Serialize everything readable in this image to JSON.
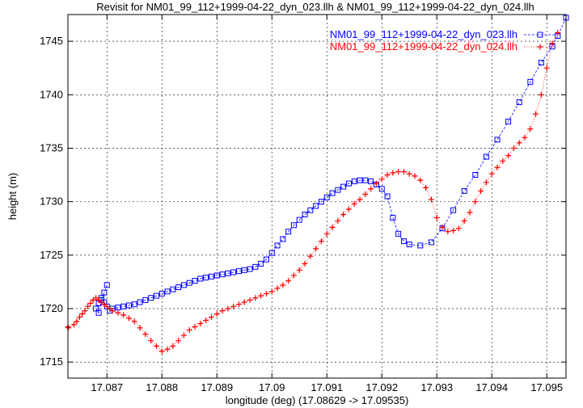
{
  "chart_data": {
    "type": "scatter",
    "title": "Revisit for NM01_99_112+1999-04-22_dyn_023.llh & NM01_99_112+1999-04-22_dyn_024.llh",
    "xlabel": "longitude (deg) (17.08629 -> 17.09535)",
    "ylabel": "height (m)",
    "xlim": [
      17.08629,
      17.09535
    ],
    "ylim": [
      1713.5,
      1747.5
    ],
    "xticks": [
      "17.087",
      "17.088",
      "17.089",
      "17.09",
      "17.091",
      "17.092",
      "17.093",
      "17.094",
      "17.095"
    ],
    "yticks": [
      "1715",
      "1720",
      "1725",
      "1730",
      "1735",
      "1740",
      "1745"
    ],
    "grid": true,
    "legend_position": "top-right",
    "series": [
      {
        "name": "NM01_99_112+1999-04-22_dyn_023.llh",
        "color": "#0000ff",
        "marker": "square",
        "line": "dashed",
        "x": [
          17.09535,
          17.0952,
          17.0951,
          17.0949,
          17.0947,
          17.0945,
          17.0943,
          17.0941,
          17.0939,
          17.0937,
          17.0935,
          17.0933,
          17.0931,
          17.0929,
          17.0927,
          17.0925,
          17.0924,
          17.0923,
          17.0922,
          17.0921,
          17.092,
          17.0919,
          17.0918,
          17.0917,
          17.0916,
          17.0915,
          17.0914,
          17.0913,
          17.0912,
          17.0911,
          17.091,
          17.0909,
          17.0908,
          17.0907,
          17.0906,
          17.0905,
          17.0904,
          17.0903,
          17.0902,
          17.0901,
          17.09,
          17.0899,
          17.0898,
          17.0897,
          17.0896,
          17.0895,
          17.0894,
          17.0893,
          17.0892,
          17.0891,
          17.089,
          17.0889,
          17.0888,
          17.0887,
          17.0886,
          17.0885,
          17.0884,
          17.0883,
          17.0882,
          17.0881,
          17.088,
          17.0879,
          17.0878,
          17.0877,
          17.0876,
          17.0875,
          17.0874,
          17.0873,
          17.0872,
          17.0871,
          17.08705,
          17.087,
          17.08695,
          17.0869,
          17.08685,
          17.0868,
          17.08685,
          17.0869,
          17.08695,
          17.087
        ],
        "y": [
          1747.2,
          1745.5,
          1744.5,
          1743.0,
          1741.2,
          1739.3,
          1737.5,
          1735.8,
          1734.2,
          1732.5,
          1731.0,
          1729.2,
          1727.5,
          1726.2,
          1725.9,
          1726.0,
          1726.3,
          1727.0,
          1728.5,
          1730.5,
          1731.2,
          1731.6,
          1731.9,
          1732.0,
          1732.0,
          1731.9,
          1731.7,
          1731.4,
          1731.1,
          1730.8,
          1730.4,
          1730.0,
          1729.6,
          1729.2,
          1728.8,
          1728.3,
          1727.8,
          1727.2,
          1726.5,
          1725.9,
          1725.2,
          1724.6,
          1724.2,
          1723.9,
          1723.7,
          1723.6,
          1723.5,
          1723.4,
          1723.3,
          1723.2,
          1723.1,
          1723.0,
          1722.9,
          1722.8,
          1722.6,
          1722.4,
          1722.2,
          1722.0,
          1721.8,
          1721.6,
          1721.4,
          1721.2,
          1721.0,
          1720.8,
          1720.6,
          1720.4,
          1720.3,
          1720.2,
          1720.1,
          1720.0,
          1719.8,
          1720.2,
          1720.6,
          1721.0,
          1720.5,
          1720.0,
          1719.6,
          1720.8,
          1721.5,
          1722.2
        ]
      },
      {
        "name": "NM01_99_112+1999-04-22_dyn_024.llh",
        "color": "#ff0000",
        "marker": "plus",
        "line": "dotted",
        "x": [
          17.0952,
          17.0951,
          17.095,
          17.0949,
          17.0948,
          17.0947,
          17.0946,
          17.0945,
          17.0944,
          17.0943,
          17.0942,
          17.0941,
          17.094,
          17.0939,
          17.0938,
          17.0937,
          17.0936,
          17.0935,
          17.0934,
          17.0933,
          17.0932,
          17.0931,
          17.093,
          17.0929,
          17.0928,
          17.0927,
          17.0926,
          17.0925,
          17.0924,
          17.0923,
          17.0922,
          17.0921,
          17.092,
          17.0919,
          17.0918,
          17.0917,
          17.0916,
          17.0915,
          17.0914,
          17.0913,
          17.0912,
          17.0911,
          17.091,
          17.0909,
          17.0908,
          17.0907,
          17.0906,
          17.0905,
          17.0904,
          17.0903,
          17.0902,
          17.0901,
          17.09,
          17.0899,
          17.0898,
          17.0897,
          17.0896,
          17.0895,
          17.0894,
          17.0893,
          17.0892,
          17.0891,
          17.089,
          17.0889,
          17.0888,
          17.0887,
          17.0886,
          17.0885,
          17.0884,
          17.0883,
          17.0882,
          17.0881,
          17.088,
          17.0879,
          17.0878,
          17.0877,
          17.0876,
          17.0875,
          17.0874,
          17.0873,
          17.0872,
          17.0871,
          17.08705,
          17.087,
          17.08695,
          17.0869,
          17.08685,
          17.0868,
          17.08675,
          17.0867,
          17.08665,
          17.0866,
          17.08655,
          17.0865,
          17.08645,
          17.0864,
          17.0863,
          17.08629
        ],
        "y": [
          1745.8,
          1744.8,
          1742.5,
          1740.0,
          1738.2,
          1736.8,
          1736.0,
          1735.5,
          1735.0,
          1734.3,
          1733.8,
          1733.2,
          1732.6,
          1731.8,
          1731.0,
          1730.0,
          1729.0,
          1728.2,
          1727.5,
          1727.3,
          1727.2,
          1727.6,
          1728.5,
          1730.2,
          1731.3,
          1732.0,
          1732.4,
          1732.6,
          1732.8,
          1732.8,
          1732.7,
          1732.5,
          1732.1,
          1731.7,
          1731.2,
          1730.7,
          1730.2,
          1729.8,
          1729.3,
          1728.8,
          1728.2,
          1727.6,
          1727.0,
          1726.3,
          1725.6,
          1724.9,
          1724.2,
          1723.6,
          1723.1,
          1722.6,
          1722.2,
          1721.9,
          1721.6,
          1721.4,
          1721.2,
          1721.0,
          1720.8,
          1720.6,
          1720.4,
          1720.2,
          1720.0,
          1719.8,
          1719.5,
          1719.2,
          1718.9,
          1718.6,
          1718.3,
          1718.0,
          1717.5,
          1717.0,
          1716.5,
          1716.2,
          1716.0,
          1716.5,
          1717.0,
          1717.6,
          1718.2,
          1718.8,
          1719.1,
          1719.4,
          1719.6,
          1719.8,
          1720.0,
          1720.2,
          1720.4,
          1720.6,
          1720.8,
          1721.0,
          1720.8,
          1720.5,
          1720.2,
          1719.8,
          1719.5,
          1719.2,
          1718.8,
          1718.5,
          1718.2,
          1718.3
        ]
      }
    ]
  }
}
